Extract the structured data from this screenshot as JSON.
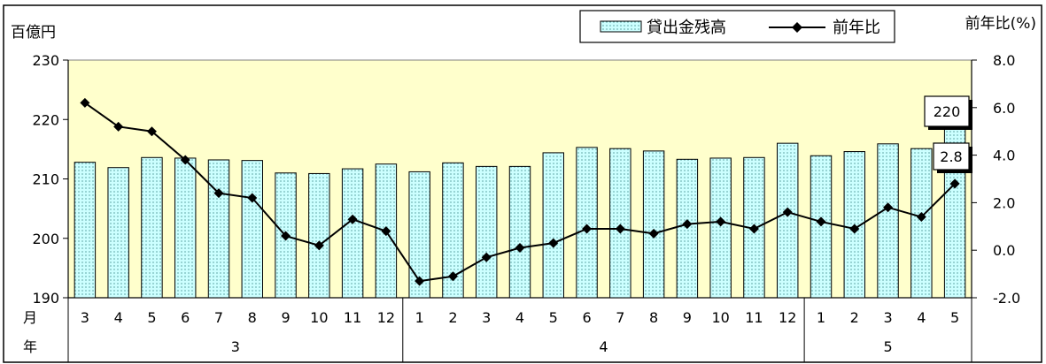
{
  "chart_data": {
    "type": "bar",
    "title_fragment": "貸出金残高",
    "left_unit": "百億円",
    "right_unit": "前年比(%)",
    "month_row_label": "月",
    "year_row_label": "年",
    "categories": [
      "3",
      "4",
      "5",
      "6",
      "7",
      "8",
      "9",
      "10",
      "11",
      "12",
      "1",
      "2",
      "3",
      "4",
      "5",
      "6",
      "7",
      "8",
      "9",
      "10",
      "11",
      "12",
      "1",
      "2",
      "3",
      "4",
      "5"
    ],
    "year_groups": [
      {
        "label": "3",
        "count": 10
      },
      {
        "label": "4",
        "count": 12
      },
      {
        "label": "5",
        "count": 5
      }
    ],
    "series": [
      {
        "name": "貸出金残高",
        "kind": "bar",
        "axis": "left",
        "values": [
          212.8,
          211.9,
          213.6,
          213.5,
          213.2,
          213.1,
          211.0,
          210.9,
          211.7,
          212.5,
          211.2,
          212.7,
          212.1,
          212.1,
          214.4,
          215.3,
          215.1,
          214.7,
          213.3,
          213.5,
          213.6,
          216.0,
          213.9,
          214.6,
          215.9,
          215.1,
          220.3
        ]
      },
      {
        "name": "前年比",
        "kind": "line",
        "axis": "right",
        "values": [
          6.2,
          5.2,
          5.0,
          3.8,
          2.4,
          2.2,
          0.6,
          0.2,
          1.3,
          0.8,
          -1.3,
          -1.1,
          -0.3,
          0.1,
          0.3,
          0.9,
          0.9,
          0.7,
          1.1,
          1.2,
          0.9,
          1.6,
          1.2,
          0.9,
          1.8,
          1.4,
          2.8
        ]
      }
    ],
    "left_axis": {
      "min": 190,
      "max": 230,
      "step": 10,
      "ticks": [
        "190",
        "200",
        "210",
        "220",
        "230"
      ]
    },
    "right_axis": {
      "min": -2.0,
      "max": 8.0,
      "step": 2.0,
      "ticks": [
        "-2.0",
        "0.0",
        "2.0",
        "4.0",
        "6.0",
        "8.0"
      ]
    },
    "callouts": [
      {
        "series": "貸出金残高",
        "index": 26,
        "text": "220"
      },
      {
        "series": "前年比",
        "index": 26,
        "text": "2.8"
      }
    ],
    "legend_position": "top-right",
    "colors": {
      "plot_background": "#ffffcc",
      "bar_fill": "#ccffff",
      "bar_dots": "#2a7a7a",
      "line": "#000000"
    }
  }
}
